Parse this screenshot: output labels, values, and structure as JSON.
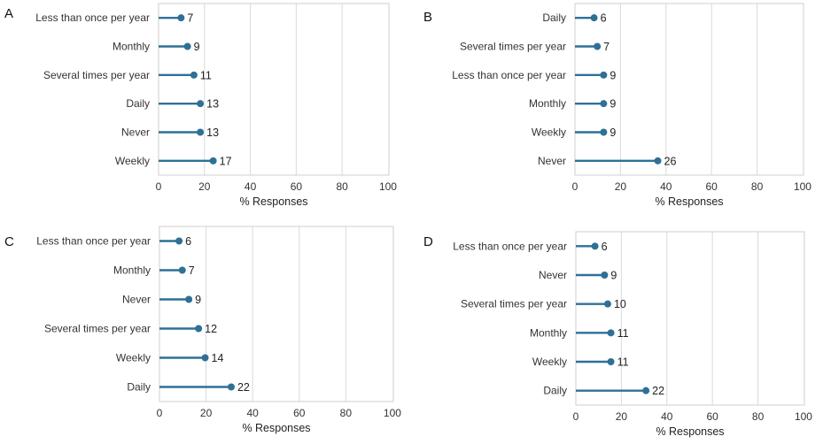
{
  "chart_data": [
    {
      "type": "lollipop",
      "panel_label": "A",
      "categories": [
        "Less than once per year",
        "Monthly",
        "Several times per year",
        "Daily",
        "Never",
        "Weekly"
      ],
      "values": [
        7,
        9,
        11,
        13,
        13,
        17
      ],
      "xlabel": "% Responses",
      "xlim": [
        0,
        100
      ],
      "xticks": [
        0,
        20,
        40,
        60,
        80,
        100
      ],
      "grid": "vertical",
      "color": "#2e7096"
    },
    {
      "type": "lollipop",
      "panel_label": "B",
      "categories": [
        "Daily",
        "Several times per year",
        "Less than once per year",
        "Monthly",
        "Weekly",
        "Never"
      ],
      "values": [
        6,
        7,
        9,
        9,
        9,
        26
      ],
      "xlabel": "% Responses",
      "xlim": [
        0,
        100
      ],
      "xticks": [
        0,
        20,
        40,
        60,
        80,
        100
      ],
      "grid": "vertical",
      "color": "#2e7096"
    },
    {
      "type": "lollipop",
      "panel_label": "C",
      "categories": [
        "Less than once per year",
        "Monthly",
        "Never",
        "Several times per year",
        "Weekly",
        "Daily"
      ],
      "values": [
        6,
        7,
        9,
        12,
        14,
        22
      ],
      "xlabel": "% Responses",
      "xlim": [
        0,
        100
      ],
      "xticks": [
        0,
        20,
        40,
        60,
        80,
        100
      ],
      "grid": "vertical",
      "color": "#2e7096"
    },
    {
      "type": "lollipop",
      "panel_label": "D",
      "categories": [
        "Less than once per year",
        "Never",
        "Several times per year",
        "Monthly",
        "Weekly",
        "Daily"
      ],
      "values": [
        6,
        9,
        10,
        11,
        11,
        22
      ],
      "xlabel": "% Responses",
      "xlim": [
        0,
        100
      ],
      "xticks": [
        0,
        20,
        40,
        60,
        80,
        100
      ],
      "grid": "vertical",
      "color": "#2e7096"
    }
  ]
}
